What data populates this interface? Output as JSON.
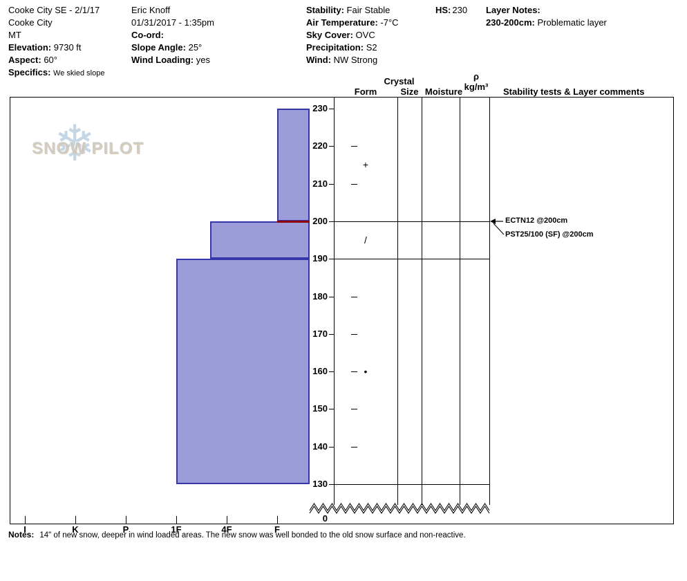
{
  "header": {
    "site": {
      "title": "Cooke City SE - 2/1/17",
      "location": "Cooke City",
      "state": "MT",
      "elevation_label": "Elevation:",
      "elevation_value": "9730 ft",
      "aspect_label": "Aspect:",
      "aspect_value": "60°",
      "specifics_label": "Specifics:",
      "specifics_value": "We skied slope"
    },
    "observer": {
      "name": "Eric Knoff",
      "datetime": "01/31/2017 - 1:35pm",
      "coord_label": "Co-ord:",
      "slope_angle_label": "Slope Angle:",
      "slope_angle_value": "25°",
      "wind_loading_label": "Wind Loading:",
      "wind_loading_value": "yes"
    },
    "conditions": {
      "stability_label": "Stability:",
      "stability_value": "Fair Stable",
      "air_temp_label": "Air Temperature:",
      "air_temp_value": "-7°C",
      "sky_label": "Sky Cover:",
      "sky_value": "OVC",
      "precip_label": "Precipitation:",
      "precip_value": "S2",
      "wind_label": "Wind:",
      "wind_value": "NW Strong"
    },
    "hs": {
      "label": "HS:",
      "value": "230"
    },
    "layer_notes": {
      "label": "Layer Notes:",
      "range": "230-200cm:",
      "text": "Problematic layer"
    }
  },
  "columns": {
    "crystal": "Crystal",
    "form": "Form",
    "size": "Size",
    "moisture": "Moisture",
    "rho": "ρ",
    "rho_unit": "kg/m³",
    "comments": "Stability tests & Layer comments"
  },
  "watermark": {
    "text": "SNOW PILOT",
    "flake_glyph": "❄"
  },
  "notes": {
    "label": "Notes:",
    "text": "14\" of new snow, deeper in wind loaded areas. The new snow was well bonded to the old snow surface and non-reactive."
  },
  "chart_data": {
    "type": "snow-profile-bar",
    "title": "Snow hardness profile",
    "depth_unit": "cm",
    "hs_total_depth": 230,
    "depth_axis_labels": [
      230,
      220,
      210,
      200,
      190,
      180,
      170,
      160,
      150,
      140,
      130
    ],
    "depth_break_label": "0",
    "hardness_categories": [
      "I",
      "K",
      "P",
      "1F",
      "4F",
      "F"
    ],
    "layers": [
      {
        "top_cm": 230,
        "bottom_cm": 200,
        "hardness": "F",
        "hardness_index": 1,
        "grain_form_symbol": "+"
      },
      {
        "top_cm": 200,
        "bottom_cm": 190,
        "hardness": "4F+",
        "hardness_index": 2.33,
        "grain_form_symbol": "/",
        "problematic_top": true
      },
      {
        "top_cm": 190,
        "bottom_cm": 130,
        "hardness": "1F",
        "hardness_index": 3,
        "grain_form_symbol": "•"
      }
    ],
    "stability_tests": [
      {
        "text": "ECTN12 @200cm",
        "depth_cm": 200
      },
      {
        "text": "PST25/100 (SF) @200cm",
        "depth_cm": 200
      }
    ],
    "colors": {
      "bar_fill": "#9c9cd8",
      "bar_border": "#3636a8",
      "problematic_line": "#8b0000"
    }
  }
}
